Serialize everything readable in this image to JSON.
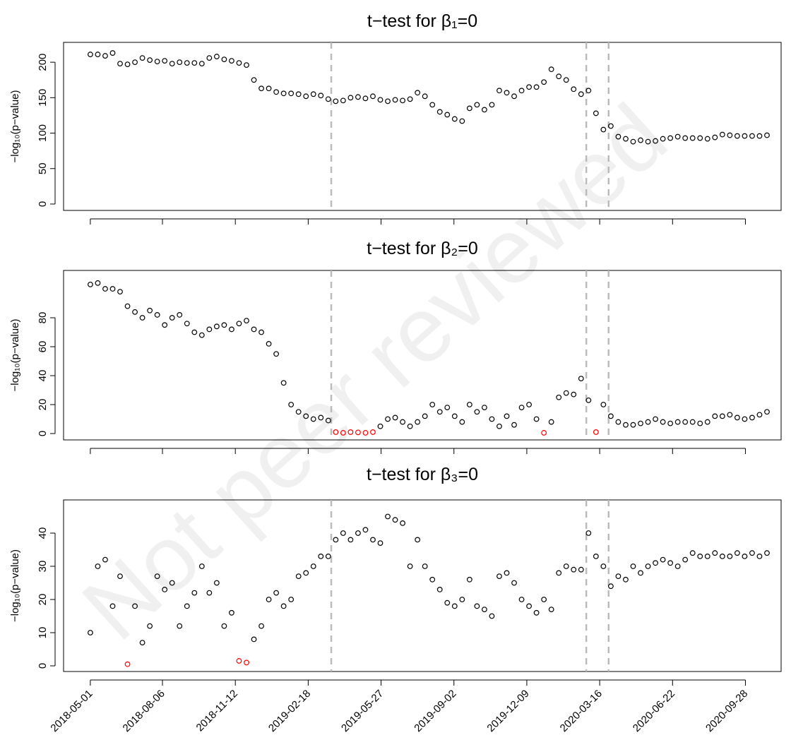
{
  "watermark": "Not peer reviewed",
  "chart_data": [
    {
      "type": "scatter",
      "title": "t−test for β₁=0",
      "y_label": "−log₁₀(p−value)",
      "x": [
        "2018-05-01",
        "2018-05-11",
        "2018-05-21",
        "2018-05-31",
        "2018-06-10",
        "2018-06-20",
        "2018-06-30",
        "2018-07-10",
        "2018-07-20",
        "2018-07-30",
        "2018-08-09",
        "2018-08-19",
        "2018-08-29",
        "2018-09-08",
        "2018-09-18",
        "2018-09-28",
        "2018-10-08",
        "2018-10-18",
        "2018-10-28",
        "2018-11-07",
        "2018-11-17",
        "2018-11-27",
        "2018-12-07",
        "2018-12-17",
        "2018-12-27",
        "2019-01-06",
        "2019-01-16",
        "2019-01-26",
        "2019-02-05",
        "2019-02-15",
        "2019-02-25",
        "2019-03-07",
        "2019-03-17",
        "2019-03-27",
        "2019-04-06",
        "2019-04-16",
        "2019-04-26",
        "2019-05-06",
        "2019-05-16",
        "2019-05-26",
        "2019-06-05",
        "2019-06-15",
        "2019-06-25",
        "2019-07-05",
        "2019-07-15",
        "2019-07-25",
        "2019-08-04",
        "2019-08-14",
        "2019-08-24",
        "2019-09-03",
        "2019-09-13",
        "2019-09-23",
        "2019-10-03",
        "2019-10-13",
        "2019-10-23",
        "2019-11-02",
        "2019-11-12",
        "2019-11-22",
        "2019-12-02",
        "2019-12-12",
        "2019-12-22",
        "2020-01-01",
        "2020-01-11",
        "2020-01-21",
        "2020-01-31",
        "2020-02-10",
        "2020-02-20",
        "2020-03-01",
        "2020-03-11",
        "2020-03-21",
        "2020-03-31",
        "2020-04-10",
        "2020-04-20",
        "2020-04-30",
        "2020-05-10",
        "2020-05-20",
        "2020-05-30",
        "2020-06-09",
        "2020-06-19",
        "2020-06-29",
        "2020-07-09",
        "2020-07-19",
        "2020-07-29",
        "2020-08-08",
        "2020-08-18",
        "2020-08-28",
        "2020-09-07",
        "2020-09-17",
        "2020-09-27",
        "2020-10-07",
        "2020-10-17",
        "2020-10-27"
      ],
      "series": [
        {
          "color": "#000000",
          "values": [
            211,
            211,
            209,
            213,
            198,
            197,
            200,
            206,
            203,
            201,
            202,
            198,
            200,
            199,
            199,
            198,
            206,
            208,
            204,
            202,
            199,
            196,
            175,
            163,
            163,
            158,
            156,
            156,
            155,
            152,
            155,
            153,
            148,
            145,
            146,
            150,
            151,
            149,
            152,
            147,
            145,
            147,
            146,
            148,
            157,
            152,
            140,
            130,
            126,
            120,
            117,
            135,
            140,
            133,
            140,
            160,
            157,
            152,
            160,
            165,
            165,
            172,
            190,
            180,
            175,
            162,
            155,
            160,
            128,
            105,
            110,
            95,
            92,
            88,
            90,
            88,
            89,
            92,
            93,
            95,
            93,
            93,
            93,
            92,
            94,
            98,
            97,
            96,
            96,
            96,
            96,
            97
          ]
        }
      ],
      "xlim": [
        "2018-03-26",
        "2020-11-15"
      ],
      "xticks": [
        "2018-05-01",
        "2018-08-06",
        "2018-11-12",
        "2019-02-18",
        "2019-05-27",
        "2019-09-02",
        "2019-12-09",
        "2020-03-16",
        "2020-06-22",
        "2020-09-28"
      ],
      "show_xtick_labels": false,
      "ylim": [
        -9,
        228
      ],
      "yticks": [
        0,
        50,
        100,
        150,
        200
      ],
      "vlines": [
        "2019-03-21",
        "2020-02-27",
        "2020-03-28"
      ],
      "vline_color": "#bbbbbb"
    },
    {
      "type": "scatter",
      "title": "t−test for β₂=0",
      "y_label": "−log₁₀(p−value)",
      "x": [
        "2018-05-01",
        "2018-05-11",
        "2018-05-21",
        "2018-05-31",
        "2018-06-10",
        "2018-06-20",
        "2018-06-30",
        "2018-07-10",
        "2018-07-20",
        "2018-07-30",
        "2018-08-09",
        "2018-08-19",
        "2018-08-29",
        "2018-09-08",
        "2018-09-18",
        "2018-09-28",
        "2018-10-08",
        "2018-10-18",
        "2018-10-28",
        "2018-11-07",
        "2018-11-17",
        "2018-11-27",
        "2018-12-07",
        "2018-12-17",
        "2018-12-27",
        "2019-01-06",
        "2019-01-16",
        "2019-01-26",
        "2019-02-05",
        "2019-02-15",
        "2019-02-25",
        "2019-03-07",
        "2019-03-17",
        "2019-03-27",
        "2019-04-06",
        "2019-04-16",
        "2019-04-26",
        "2019-05-06",
        "2019-05-16",
        "2019-05-26",
        "2019-06-05",
        "2019-06-15",
        "2019-06-25",
        "2019-07-05",
        "2019-07-15",
        "2019-07-25",
        "2019-08-04",
        "2019-08-14",
        "2019-08-24",
        "2019-09-03",
        "2019-09-13",
        "2019-09-23",
        "2019-10-03",
        "2019-10-13",
        "2019-10-23",
        "2019-11-02",
        "2019-11-12",
        "2019-11-22",
        "2019-12-02",
        "2019-12-12",
        "2019-12-22",
        "2020-01-01",
        "2020-01-11",
        "2020-01-21",
        "2020-01-31",
        "2020-02-10",
        "2020-02-20",
        "2020-03-01",
        "2020-03-11",
        "2020-03-21",
        "2020-03-31",
        "2020-04-10",
        "2020-04-20",
        "2020-04-30",
        "2020-05-10",
        "2020-05-20",
        "2020-05-30",
        "2020-06-09",
        "2020-06-19",
        "2020-06-29",
        "2020-07-09",
        "2020-07-19",
        "2020-07-29",
        "2020-08-08",
        "2020-08-18",
        "2020-08-28",
        "2020-09-07",
        "2020-09-17",
        "2020-09-27",
        "2020-10-07",
        "2020-10-17",
        "2020-10-27"
      ],
      "series": [
        {
          "color": "#000000",
          "values": [
            103,
            104,
            100,
            100,
            98,
            88,
            84,
            80,
            85,
            82,
            75,
            80,
            82,
            76,
            70,
            68,
            72,
            74,
            75,
            72,
            76,
            78,
            72,
            70,
            62,
            55,
            35,
            20,
            15,
            12,
            10,
            11,
            9,
            null,
            null,
            null,
            null,
            null,
            null,
            5,
            10,
            11,
            8,
            5,
            8,
            12,
            20,
            15,
            18,
            12,
            8,
            20,
            15,
            18,
            10,
            5,
            12,
            6,
            18,
            20,
            10,
            null,
            8,
            25,
            28,
            27,
            38,
            23,
            null,
            20,
            12,
            8,
            6,
            6,
            7,
            8,
            10,
            8,
            7,
            8,
            8,
            8,
            7,
            8,
            12,
            12,
            13,
            11,
            10,
            11,
            13,
            15
          ]
        },
        {
          "color": "#ff0000",
          "values": [
            null,
            null,
            null,
            null,
            null,
            null,
            null,
            null,
            null,
            null,
            null,
            null,
            null,
            null,
            null,
            null,
            null,
            null,
            null,
            null,
            null,
            null,
            null,
            null,
            null,
            null,
            null,
            null,
            null,
            null,
            null,
            null,
            null,
            1,
            0.5,
            1,
            0.8,
            0.5,
            1,
            null,
            null,
            null,
            null,
            null,
            null,
            null,
            null,
            null,
            null,
            null,
            null,
            null,
            null,
            null,
            null,
            null,
            null,
            null,
            null,
            null,
            null,
            0.5,
            null,
            null,
            null,
            null,
            null,
            null,
            1,
            null,
            null,
            null,
            null,
            null,
            null,
            null,
            null,
            null,
            null,
            null,
            null,
            null,
            null,
            null,
            null,
            null,
            null,
            null,
            null,
            null,
            null,
            null
          ]
        }
      ],
      "xlim": [
        "2018-03-26",
        "2020-11-15"
      ],
      "xticks": [
        "2018-05-01",
        "2018-08-06",
        "2018-11-12",
        "2019-02-18",
        "2019-05-27",
        "2019-09-02",
        "2019-12-09",
        "2020-03-16",
        "2020-06-22",
        "2020-09-28"
      ],
      "show_xtick_labels": false,
      "ylim": [
        -4.4,
        112.7
      ],
      "yticks": [
        0,
        20,
        40,
        60,
        80
      ],
      "vlines": [
        "2019-03-21",
        "2020-02-27",
        "2020-03-28"
      ],
      "vline_color": "#bbbbbb"
    },
    {
      "type": "scatter",
      "title": "t−test for β₃=0",
      "y_label": "−log₁₀(p−value)",
      "x": [
        "2018-05-01",
        "2018-05-11",
        "2018-05-21",
        "2018-05-31",
        "2018-06-10",
        "2018-06-20",
        "2018-06-30",
        "2018-07-10",
        "2018-07-20",
        "2018-07-30",
        "2018-08-09",
        "2018-08-19",
        "2018-08-29",
        "2018-09-08",
        "2018-09-18",
        "2018-09-28",
        "2018-10-08",
        "2018-10-18",
        "2018-10-28",
        "2018-11-07",
        "2018-11-17",
        "2018-11-27",
        "2018-12-07",
        "2018-12-17",
        "2018-12-27",
        "2019-01-06",
        "2019-01-16",
        "2019-01-26",
        "2019-02-05",
        "2019-02-15",
        "2019-02-25",
        "2019-03-07",
        "2019-03-17",
        "2019-03-27",
        "2019-04-06",
        "2019-04-16",
        "2019-04-26",
        "2019-05-06",
        "2019-05-16",
        "2019-05-26",
        "2019-06-05",
        "2019-06-15",
        "2019-06-25",
        "2019-07-05",
        "2019-07-15",
        "2019-07-25",
        "2019-08-04",
        "2019-08-14",
        "2019-08-24",
        "2019-09-03",
        "2019-09-13",
        "2019-09-23",
        "2019-10-03",
        "2019-10-13",
        "2019-10-23",
        "2019-11-02",
        "2019-11-12",
        "2019-11-22",
        "2019-12-02",
        "2019-12-12",
        "2019-12-22",
        "2020-01-01",
        "2020-01-11",
        "2020-01-21",
        "2020-01-31",
        "2020-02-10",
        "2020-02-20",
        "2020-03-01",
        "2020-03-11",
        "2020-03-21",
        "2020-03-31",
        "2020-04-10",
        "2020-04-20",
        "2020-04-30",
        "2020-05-10",
        "2020-05-20",
        "2020-05-30",
        "2020-06-09",
        "2020-06-19",
        "2020-06-29",
        "2020-07-09",
        "2020-07-19",
        "2020-07-29",
        "2020-08-08",
        "2020-08-18",
        "2020-08-28",
        "2020-09-07",
        "2020-09-17",
        "2020-09-27",
        "2020-10-07",
        "2020-10-17",
        "2020-10-27"
      ],
      "series": [
        {
          "color": "#000000",
          "values": [
            10,
            30,
            32,
            18,
            27,
            null,
            18,
            7,
            12,
            27,
            23,
            25,
            12,
            18,
            22,
            30,
            22,
            25,
            12,
            16,
            null,
            null,
            8,
            12,
            20,
            22,
            18,
            20,
            27,
            28,
            30,
            33,
            33,
            38,
            40,
            38,
            40,
            41,
            38,
            37,
            45,
            44,
            43,
            30,
            38,
            30,
            26,
            23,
            19,
            18,
            20,
            26,
            18,
            17,
            15,
            27,
            28,
            25,
            20,
            18,
            16,
            20,
            17,
            28,
            30,
            29,
            29,
            40,
            33,
            30,
            24,
            27,
            26,
            30,
            28,
            30,
            31,
            32,
            31,
            30,
            32,
            34,
            33,
            33,
            34,
            33,
            33,
            34,
            33,
            34,
            33,
            34
          ]
        },
        {
          "color": "#ff0000",
          "values": [
            null,
            null,
            null,
            null,
            null,
            0.5,
            null,
            null,
            null,
            null,
            null,
            null,
            null,
            null,
            null,
            null,
            null,
            null,
            null,
            null,
            1.5,
            1,
            null,
            null,
            null,
            null,
            null,
            null,
            null,
            null,
            null,
            null,
            null,
            null,
            null,
            null,
            null,
            null,
            null,
            null,
            null,
            null,
            null,
            null,
            null,
            null,
            null,
            null,
            null,
            null,
            null,
            null,
            null,
            null,
            null,
            null,
            null,
            null,
            null,
            null,
            null,
            null,
            null,
            null,
            null,
            null,
            null,
            null,
            null,
            null,
            null,
            null,
            null,
            null,
            null,
            null,
            null,
            null,
            null,
            null,
            null,
            null,
            null,
            null,
            null,
            null,
            null,
            null,
            null,
            null,
            null,
            null
          ]
        }
      ],
      "xlim": [
        "2018-03-26",
        "2020-11-15"
      ],
      "xticks": [
        "2018-05-01",
        "2018-08-06",
        "2018-11-12",
        "2019-02-18",
        "2019-05-27",
        "2019-09-02",
        "2019-12-09",
        "2020-03-16",
        "2020-06-22",
        "2020-09-28"
      ],
      "show_xtick_labels": true,
      "ylim": [
        -1.7,
        50
      ],
      "yticks": [
        0,
        10,
        20,
        30,
        40
      ],
      "vlines": [
        "2019-03-21",
        "2020-02-27",
        "2020-03-28"
      ],
      "vline_color": "#bbbbbb"
    }
  ]
}
